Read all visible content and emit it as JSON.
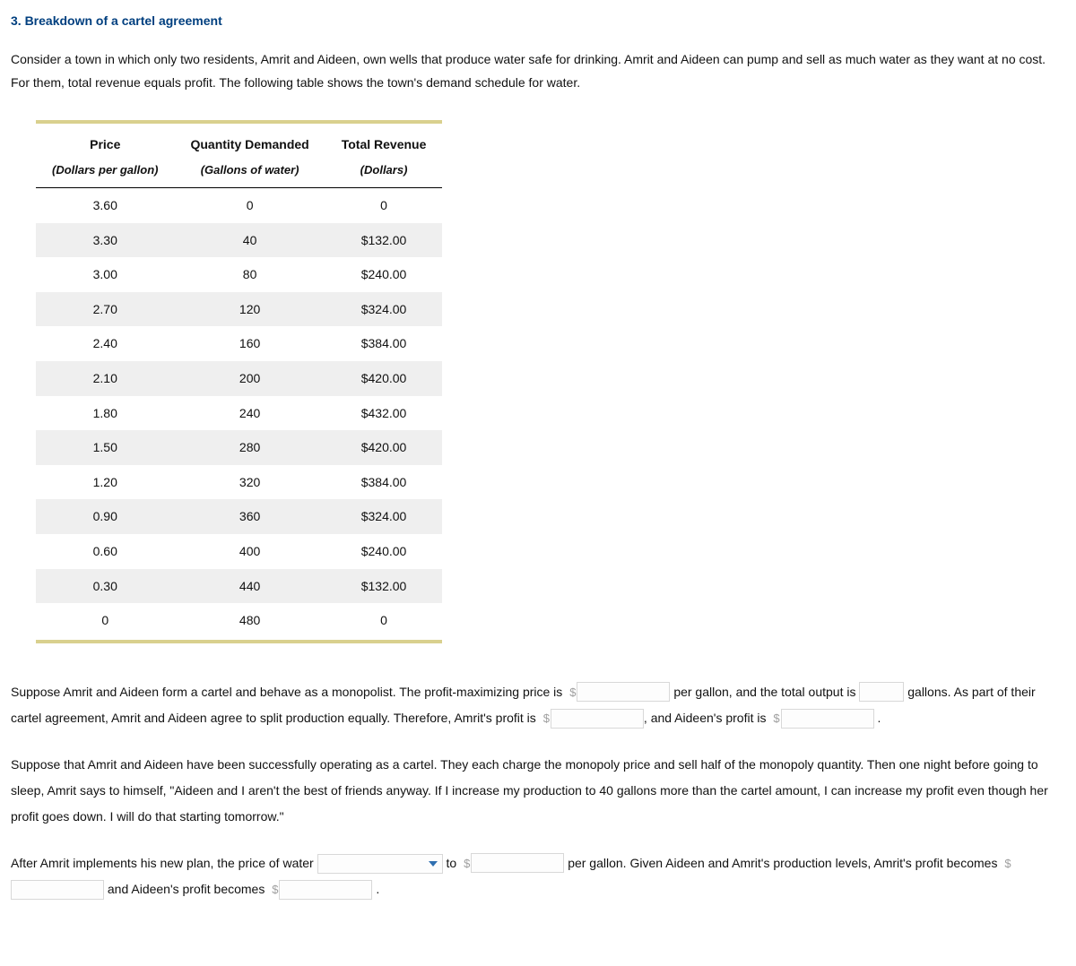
{
  "heading": "3. Breakdown of a cartel agreement",
  "intro": "Consider a town in which only two residents, Amrit and Aideen, own wells that produce water safe for drinking. Amrit and Aideen can pump and sell as much water as they want at no cost. For them, total revenue equals profit. The following table shows the town's demand schedule for water.",
  "table": {
    "col1_title": "Price",
    "col1_sub": "(Dollars per gallon)",
    "col2_title": "Quantity Demanded",
    "col2_sub": "(Gallons of water)",
    "col3_title": "Total Revenue",
    "col3_sub": "(Dollars)",
    "rows": [
      {
        "price": "3.60",
        "qty": "0",
        "rev": "0"
      },
      {
        "price": "3.30",
        "qty": "40",
        "rev": "$132.00"
      },
      {
        "price": "3.00",
        "qty": "80",
        "rev": "$240.00"
      },
      {
        "price": "2.70",
        "qty": "120",
        "rev": "$324.00"
      },
      {
        "price": "2.40",
        "qty": "160",
        "rev": "$384.00"
      },
      {
        "price": "2.10",
        "qty": "200",
        "rev": "$420.00"
      },
      {
        "price": "1.80",
        "qty": "240",
        "rev": "$432.00"
      },
      {
        "price": "1.50",
        "qty": "280",
        "rev": "$420.00"
      },
      {
        "price": "1.20",
        "qty": "320",
        "rev": "$384.00"
      },
      {
        "price": "0.90",
        "qty": "360",
        "rev": "$324.00"
      },
      {
        "price": "0.60",
        "qty": "400",
        "rev": "$240.00"
      },
      {
        "price": "0.30",
        "qty": "440",
        "rev": "$132.00"
      },
      {
        "price": "0",
        "qty": "480",
        "rev": "0"
      }
    ],
    "header_bg": "#ffffff",
    "stripe_odd": "#ffffff",
    "stripe_even": "#efefef",
    "rule_color": "#d9d08e"
  },
  "p1": {
    "t1": "Suppose Amrit and Aideen form a cartel and behave as a monopolist. The profit-maximizing price is",
    "t2": "per gallon, and the total output is",
    "t3": "gallons. As part of their cartel agreement, Amrit and Aideen agree to split production equally. Therefore, Amrit's profit is",
    "t4": ", and Aideen's profit is",
    "t5": "."
  },
  "p2": "Suppose that Amrit and Aideen have been successfully operating as a cartel. They each charge the monopoly price and sell half of the monopoly quantity. Then one night before going to sleep, Amrit says to himself, \"Aideen and I aren't the best of friends anyway. If I increase my production to 40 gallons more than the cartel amount, I can increase my profit even though her profit goes down. I will do that starting tomorrow.\"",
  "p3": {
    "t1": "After Amrit implements his new plan, the price of water",
    "t2": "to",
    "t3": "per gallon. Given Aideen and Amrit's production levels, Amrit's profit becomes",
    "t4": "and Aideen's profit becomes",
    "t5": "."
  },
  "dollar_sign": "$",
  "colors": {
    "heading": "#003f7f",
    "placeholder": "#9e9e9e",
    "dropdown_arrow": "#2f6fb0",
    "input_border": "#d8d8d8"
  }
}
